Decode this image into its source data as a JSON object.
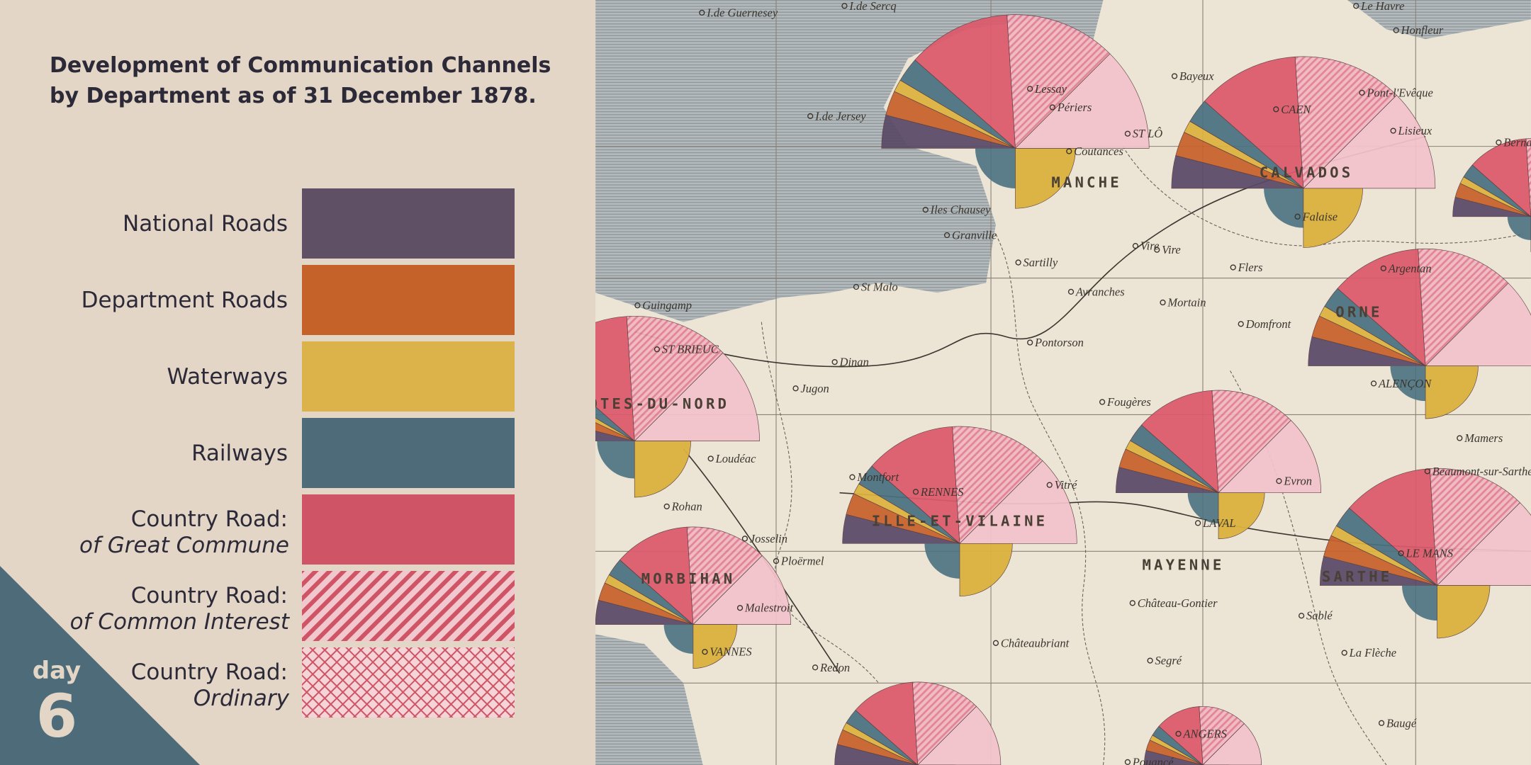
{
  "header": {
    "title_lines": [
      "Development of Communication Channels",
      "by Department as of 31 December 1878."
    ]
  },
  "legend": {
    "items": [
      {
        "label": "National Roads",
        "color": "#5f5065",
        "pattern": "solid"
      },
      {
        "label": "Department Roads",
        "color": "#c4622a",
        "pattern": "solid"
      },
      {
        "label": "Waterways",
        "color": "#dcb24a",
        "pattern": "solid"
      },
      {
        "label": "Railways",
        "color": "#4d6b78",
        "pattern": "solid"
      },
      {
        "label": "Country Road:",
        "sublabel": "of Great Commune",
        "color": "#cf5566",
        "pattern": "solid"
      },
      {
        "label": "Country Road:",
        "sublabel": "of Common Interest",
        "color": "#cf5566",
        "pattern": "hatch"
      },
      {
        "label": "Country Road:",
        "sublabel": "Ordinary",
        "color": "#cf5566",
        "pattern": "crosshatch"
      }
    ]
  },
  "badge": {
    "word": "day",
    "number": "6"
  },
  "map": {
    "departments": [
      "MANCHE",
      "CALVADOS",
      "ORNE",
      "MAYENNE",
      "SARTHE",
      "ILLE-ET-VILAINE",
      "MORBIHAN",
      "ÔTES-DU-NORD"
    ],
    "places": [
      "Bayeux",
      "Lisieux",
      "Vire",
      "Mortain",
      "Avranches",
      "Domfront",
      "Fougères",
      "Vitré",
      "LAVAL",
      "RENNES",
      "Coutances",
      "Granville",
      "ST LÔ",
      "CAEN",
      "ALENÇON",
      "LE MANS",
      "Loudéac",
      "Ploërmel",
      "VANNES",
      "Redon",
      "Châteaubriant",
      "Château-Gontier",
      "Segré",
      "La Flèche",
      "Falaise",
      "Argentan",
      "Dinan",
      "St Malo",
      "Guingamp",
      "ST BRIEUC",
      "Mamers",
      "ANGERS",
      "Montfort",
      "Le Havre",
      "Honfleur",
      "Pont-l'Evêque",
      "I.de Jersey",
      "I.de Guernesey",
      "I.de Sercq",
      "Iles Chausey",
      "Lessay",
      "Périers",
      "Sartilly",
      "Pontorson",
      "Jugon",
      "Rohan",
      "Josselin",
      "Malestroit",
      "Vire",
      "Flers",
      "Evron",
      "Beaumont-sur-Sarthe",
      "Sablé",
      "Pouancé",
      "Baugé",
      "Bernay"
    ]
  }
}
